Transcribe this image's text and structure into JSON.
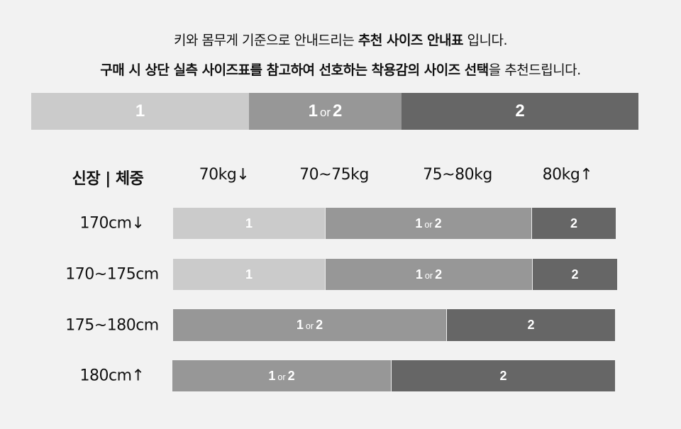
{
  "intro": {
    "line1": [
      {
        "text": "키와 몸무게 기준으로 안내드리는 ",
        "bold": false
      },
      {
        "text": "추천 사이즈 안내표",
        "bold": true
      },
      {
        "text": " 입니다.",
        "bold": false
      }
    ],
    "line2": [
      {
        "text": "구매 시 상단 실측 사이즈표를 참고하여 선호하는 착용감의 사이즈 선택",
        "bold": true
      },
      {
        "text": "을 추천드립니다.",
        "bold": false
      }
    ]
  },
  "colors": {
    "light": "#cbcbcb",
    "mid": "#979797",
    "dark": "#666666",
    "background": "#f2f2f2"
  },
  "legend_bar": [
    {
      "label": "1",
      "tone": "light"
    },
    {
      "label": "1 or 2",
      "tone": "mid"
    },
    {
      "label": "2",
      "tone": "dark"
    }
  ],
  "table": {
    "corner_header": "신장 | 체중",
    "weight_headers": [
      "70kg↓",
      "70~75kg",
      "75~80kg",
      "80kg↑"
    ],
    "rows": [
      {
        "height": "170cm↓",
        "segments": [
          {
            "label": "1",
            "tone": "light"
          },
          {
            "label": "1 or 2",
            "tone": "mid"
          },
          {
            "label": "2",
            "tone": "dark"
          }
        ]
      },
      {
        "height": "170~175cm",
        "segments": [
          {
            "label": "1",
            "tone": "light"
          },
          {
            "label": "1 or 2",
            "tone": "mid"
          },
          {
            "label": "2",
            "tone": "dark"
          }
        ]
      },
      {
        "height": "175~180cm",
        "segments": [
          {
            "label": "1 or 2",
            "tone": "mid"
          },
          {
            "label": "2",
            "tone": "dark"
          }
        ]
      },
      {
        "height": "180cm↑",
        "segments": [
          {
            "label": "1 or 2",
            "tone": "mid"
          },
          {
            "label": "2",
            "tone": "dark"
          }
        ]
      }
    ]
  }
}
